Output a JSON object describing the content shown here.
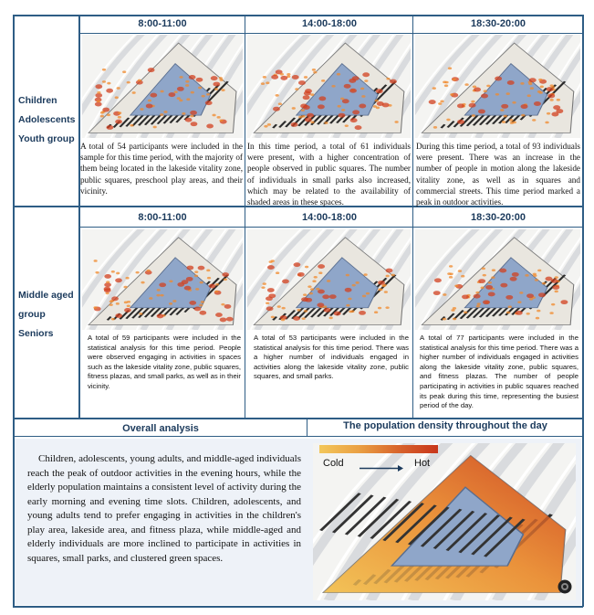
{
  "rows": [
    {
      "group_label": [
        "Children",
        "Adolescents",
        "Youth group"
      ],
      "columns": [
        {
          "time": "8:00-11:00",
          "text": "A total of 54 participants were included in the sample for this time period, with the majority of them being located in the lakeside vitality zone, public squares, preschool play areas, and their vicinity."
        },
        {
          "time": "14:00-18:00",
          "text": "In this time period, a total of 61 individuals were present, with a higher concentration of people observed in public squares. The number of individuals in small parks also increased, which may be related to the availability of shaded areas in these spaces."
        },
        {
          "time": "18:30-20:00",
          "text": "During this time period, a total of 93 individuals were present. There was an increase in the number of people in motion along the lakeside vitality zone, as well as in squares and commercial streets. This time period marked a peak in outdoor activities."
        }
      ]
    },
    {
      "group_label": [
        "Middle aged",
        "group",
        "Seniors"
      ],
      "columns": [
        {
          "time": "8:00-11:00",
          "text": "A total of 59 participants were included in the statistical analysis for this time period. People were observed engaging in activities in spaces such as the lakeside vitality zone, public squares, fitness plazas, and small parks, as well as in their vicinity."
        },
        {
          "time": "14:00-18:00",
          "text": "A total of 53 participants were included in the statistical analysis for this time period. There was a higher number of individuals engaged in activities along the lakeside vitality zone, public squares, and small parks."
        },
        {
          "time": "18:30-20:00",
          "text": "A total of 77 participants were included in the statistical analysis for this time period. There was a higher number of individuals engaged in activities along the lakeside vitality zone, public squares, and fitness plazas. The number of people participating in activities in public squares reached its peak during this time, representing the busiest period of the day."
        }
      ]
    }
  ],
  "overall": {
    "heading": "Overall analysis",
    "text": "Children, adolescents, young adults, and middle-aged individuals reach the peak of outdoor activities in the evening hours, while the elderly population maintains a consistent level of activity during the early morning and evening time slots. Children, adolescents, and young adults tend to prefer engaging in activities in the children's play area, lakeside area, and fitness plaza, while middle-aged and elderly individuals are more inclined to participate in activities in squares, small parks, and clustered green spaces."
  },
  "density": {
    "heading": "The population density throughout the day",
    "legend_cold": "Cold",
    "legend_hot": "Hot",
    "colors": {
      "cold": "#f3c75a",
      "hot": "#c8361b"
    }
  },
  "colors": {
    "accent": "#1b3a5c",
    "border": "#2e5d85",
    "panel": "#eef2f8"
  }
}
